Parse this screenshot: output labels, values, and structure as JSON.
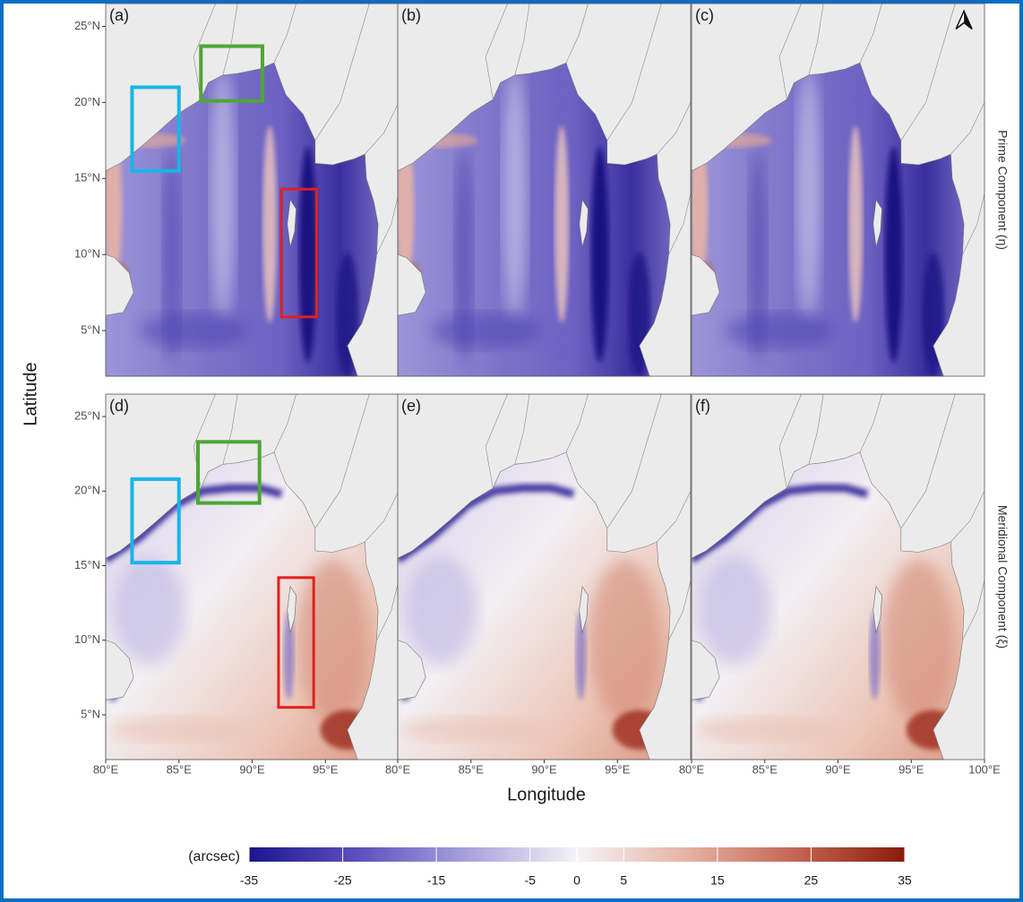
{
  "chart_data": {
    "type": "map",
    "xlabel": "Longitude",
    "ylabel": "Latitude",
    "xlim": [
      80,
      100
    ],
    "xticks": [
      {
        "value": 80,
        "label": "80°E"
      },
      {
        "value": 85,
        "label": "85°E"
      },
      {
        "value": 90,
        "label": "90°E"
      },
      {
        "value": 95,
        "label": "95°E"
      },
      {
        "value": 100,
        "label": "100°E"
      }
    ],
    "ylim": [
      2,
      26.5
    ],
    "yticks": [
      {
        "value": 5,
        "label": "5°N"
      },
      {
        "value": 10,
        "label": "10°N"
      },
      {
        "value": 15,
        "label": "15°N"
      },
      {
        "value": 20,
        "label": "20°N"
      },
      {
        "value": 25,
        "label": "25°N"
      }
    ],
    "rows": [
      {
        "label": "Prime Component (η)",
        "panels": [
          "(a)",
          "(b)",
          "(c)"
        ]
      },
      {
        "label": "Meridional Component (ξ)",
        "panels": [
          "(d)",
          "(e)",
          "(f)"
        ]
      }
    ],
    "colorbar": {
      "label": "(arcsec)",
      "lim": [
        -35,
        35
      ],
      "ticks": [
        -35,
        -25,
        -15,
        -5,
        0,
        5,
        15,
        25,
        35
      ],
      "colors": [
        "#1b168c",
        "#5d4fbf",
        "#a9a1dc",
        "#f5f3f7",
        "#e6b3a3",
        "#c46552",
        "#8a1a0e"
      ]
    }
  }
}
